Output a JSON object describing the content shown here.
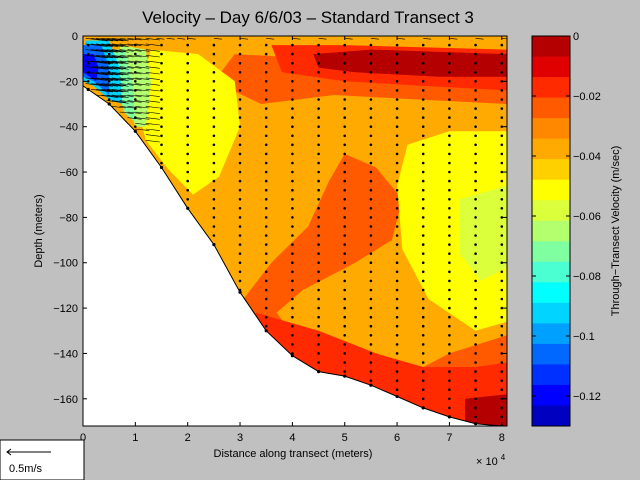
{
  "chart_data": {
    "type": "heatmap",
    "title": "Velocity – Day 6/6/03 – Standard Transect 3",
    "xlabel": "Distance along transect (meters)",
    "x_multiplier": "× 10",
    "x_multiplier_exp": "4",
    "ylabel": "Depth (meters)",
    "xlim": [
      0,
      8.1
    ],
    "ylim": [
      -172,
      0
    ],
    "x_ticks": [
      0,
      1,
      2,
      3,
      4,
      5,
      6,
      7,
      8
    ],
    "x_tick_labels": [
      "0",
      "1",
      "2",
      "3",
      "4",
      "5",
      "6",
      "7",
      "8"
    ],
    "y_ticks": [
      0,
      -20,
      -40,
      -60,
      -80,
      -100,
      -120,
      -140,
      -160
    ],
    "y_tick_labels": [
      "0",
      "−20",
      "−40",
      "−60",
      "−80",
      "−100",
      "−120",
      "−140",
      "−160"
    ],
    "grid": false,
    "colorbar": {
      "label": "Through−Transect Velocity (m/sec)",
      "range": [
        -0.13,
        0.0
      ],
      "ticks": [
        0,
        -0.02,
        -0.04,
        -0.06,
        -0.08,
        -0.1,
        -0.12
      ],
      "tick_labels": [
        "0",
        "−0.02",
        "−0.04",
        "−0.06",
        "−0.08",
        "−0.1",
        "−0.12"
      ],
      "colors_top_to_bottom": [
        "#b40000",
        "#e00000",
        "#ff2a00",
        "#ff5a00",
        "#ff8800",
        "#ffaa00",
        "#ffd000",
        "#ffff00",
        "#dcff3c",
        "#b4ff6e",
        "#80ffa0",
        "#4cffd2",
        "#00ffff",
        "#00d4ff",
        "#00a0ff",
        "#0068ff",
        "#0030ff",
        "#0000ff",
        "#0000c0"
      ]
    },
    "bottom_profile": [
      [
        0,
        -22
      ],
      [
        0.5,
        -30
      ],
      [
        1,
        -42
      ],
      [
        1.5,
        -58
      ],
      [
        2,
        -76
      ],
      [
        2.5,
        -92
      ],
      [
        3,
        -113
      ],
      [
        3.5,
        -130
      ],
      [
        4,
        -141
      ],
      [
        4.5,
        -148
      ],
      [
        5,
        -150
      ],
      [
        5.5,
        -154
      ],
      [
        6,
        -159
      ],
      [
        6.5,
        -164
      ],
      [
        7,
        -168
      ],
      [
        7.5,
        -171
      ],
      [
        8,
        -172
      ]
    ],
    "velocity_regions": [
      {
        "value": -0.04,
        "polygon": [
          [
            0,
            0
          ],
          [
            8.1,
            0
          ],
          [
            8.1,
            -172
          ],
          [
            0,
            -172
          ]
        ]
      },
      {
        "value": -0.025,
        "polygon": [
          [
            5,
            -52
          ],
          [
            5.6,
            -58
          ],
          [
            6.1,
            -72
          ],
          [
            5.9,
            -90
          ],
          [
            5.2,
            -100
          ],
          [
            4.2,
            -112
          ],
          [
            3.7,
            -122
          ],
          [
            4.3,
            -142
          ],
          [
            5,
            -150
          ],
          [
            6,
            -152
          ],
          [
            7,
            -140
          ],
          [
            8.1,
            -132
          ],
          [
            8.1,
            -172
          ],
          [
            3,
            -172
          ],
          [
            3,
            -118
          ],
          [
            3.6,
            -100
          ],
          [
            4.3,
            -84
          ],
          [
            4.7,
            -64
          ]
        ]
      },
      {
        "value": -0.015,
        "polygon": [
          [
            3.3,
            -122
          ],
          [
            4.5,
            -130
          ],
          [
            5.6,
            -140
          ],
          [
            6.5,
            -146
          ],
          [
            7.5,
            -146
          ],
          [
            8.1,
            -144
          ],
          [
            8.1,
            -172
          ],
          [
            3.3,
            -172
          ]
        ]
      },
      {
        "value": -0.006,
        "polygon": [
          [
            7.3,
            -160
          ],
          [
            8.1,
            -158
          ],
          [
            8.1,
            -172
          ],
          [
            7.3,
            -172
          ]
        ]
      },
      {
        "value": -0.05,
        "polygon": [
          [
            6.2,
            -48
          ],
          [
            7,
            -42
          ],
          [
            8.1,
            -42
          ],
          [
            8.1,
            -126
          ],
          [
            7.5,
            -130
          ],
          [
            6.6,
            -116
          ],
          [
            6.1,
            -94
          ],
          [
            6,
            -66
          ]
        ]
      },
      {
        "value": -0.058,
        "polygon": [
          [
            7.2,
            -72
          ],
          [
            8.1,
            -66
          ],
          [
            8.1,
            -102
          ],
          [
            7.6,
            -108
          ],
          [
            7.2,
            -96
          ]
        ]
      },
      {
        "value": -0.025,
        "polygon": [
          [
            2.9,
            -8
          ],
          [
            4.5,
            -10
          ],
          [
            6,
            -12
          ],
          [
            8.1,
            -14
          ],
          [
            8.1,
            -30
          ],
          [
            6.4,
            -28
          ],
          [
            4.8,
            -26
          ],
          [
            3.4,
            -30
          ],
          [
            2.5,
            -20
          ]
        ]
      },
      {
        "value": -0.015,
        "polygon": [
          [
            3.6,
            -4
          ],
          [
            5,
            -4
          ],
          [
            8.1,
            -6
          ],
          [
            8.1,
            -24
          ],
          [
            6.5,
            -22
          ],
          [
            5,
            -20
          ],
          [
            3.8,
            -16
          ]
        ]
      },
      {
        "value": -0.006,
        "polygon": [
          [
            4.4,
            -8
          ],
          [
            5.5,
            -6
          ],
          [
            8.1,
            -8
          ],
          [
            8.1,
            -18
          ],
          [
            6.8,
            -18
          ],
          [
            5.2,
            -16
          ],
          [
            4.5,
            -14
          ]
        ]
      },
      {
        "value": -0.05,
        "polygon": [
          [
            1.3,
            -6
          ],
          [
            2.2,
            -8
          ],
          [
            2.9,
            -20
          ],
          [
            3,
            -40
          ],
          [
            2.6,
            -62
          ],
          [
            2.1,
            -70
          ],
          [
            1.6,
            -58
          ],
          [
            1.2,
            -46
          ],
          [
            1,
            -28
          ]
        ]
      },
      {
        "value": -0.062,
        "polygon": [
          [
            0.7,
            -4
          ],
          [
            1.2,
            -6
          ],
          [
            1.3,
            -20
          ],
          [
            1.2,
            -40
          ],
          [
            1,
            -40
          ],
          [
            0.8,
            -22
          ]
        ]
      },
      {
        "value": -0.075,
        "polygon": [
          [
            0.45,
            -6
          ],
          [
            0.8,
            -6
          ],
          [
            0.95,
            -22
          ],
          [
            1,
            -38
          ],
          [
            0.8,
            -34
          ],
          [
            0.6,
            -20
          ]
        ]
      },
      {
        "value": -0.09,
        "polygon": [
          [
            0.05,
            -2
          ],
          [
            0.5,
            -2
          ],
          [
            0.7,
            -14
          ],
          [
            0.75,
            -30
          ],
          [
            0.5,
            -28
          ],
          [
            0.2,
            -22
          ],
          [
            0,
            -20
          ]
        ]
      },
      {
        "value": -0.105,
        "polygon": [
          [
            0,
            -4
          ],
          [
            0.35,
            -4
          ],
          [
            0.5,
            -14
          ],
          [
            0.5,
            -26
          ],
          [
            0.2,
            -20
          ],
          [
            0,
            -18
          ]
        ]
      },
      {
        "value": -0.12,
        "polygon": [
          [
            0,
            -8
          ],
          [
            0.2,
            -8
          ],
          [
            0.3,
            -14
          ],
          [
            0.25,
            -20
          ],
          [
            0,
            -16
          ]
        ]
      }
    ],
    "profile_stations": [
      0.1,
      0.5,
      1.0,
      1.5,
      2.0,
      2.5,
      3.0,
      3.5,
      4.0,
      4.5,
      5.0,
      5.5,
      6.0,
      6.5,
      7.0,
      7.5,
      8.0
    ],
    "profile_depth_step": 4,
    "vector_stations": [
      0.05,
      0.15,
      0.25,
      0.35,
      0.45,
      0.55,
      0.7,
      0.85,
      1.0,
      1.2,
      1.4,
      1.6,
      1.8,
      2.0,
      2.5,
      3.0,
      3.5,
      4.0,
      4.5,
      5.0,
      5.5,
      6.0,
      6.5,
      7.0,
      7.5,
      8.0
    ],
    "vector_scale_label": "0.5m/s"
  }
}
